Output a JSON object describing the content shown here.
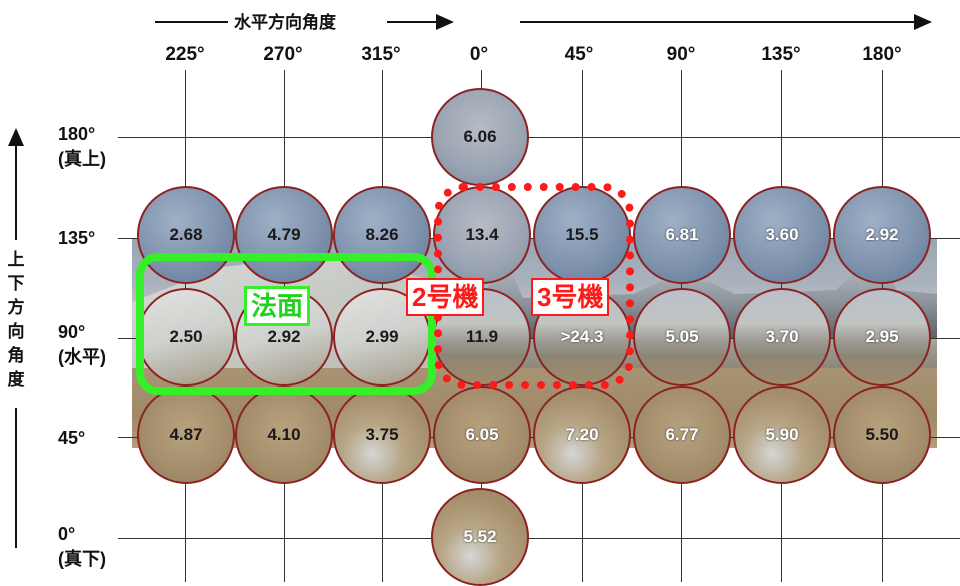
{
  "horizontal_axis": {
    "title": "水平方向角度",
    "columns": [
      "225°",
      "270°",
      "315°",
      "0°",
      "45°",
      "90°",
      "135°",
      "180°"
    ]
  },
  "vertical_axis": {
    "title": [
      "上",
      "下",
      "方",
      "向",
      "角",
      "度"
    ],
    "rows": [
      {
        "angle": "180°",
        "note": "(真上)"
      },
      {
        "angle": "135°",
        "note": ""
      },
      {
        "angle": "90°",
        "note": "(水平)"
      },
      {
        "angle": "45°",
        "note": ""
      },
      {
        "angle": "0°",
        "note": "(真下)"
      }
    ]
  },
  "measurements": {
    "top": "6.06",
    "row_135": [
      "2.68",
      "4.79",
      "8.26",
      "13.4",
      "15.5",
      "6.81",
      "3.60",
      "2.92"
    ],
    "row_90": [
      "2.50",
      "2.92",
      "2.99",
      "11.9",
      ">24.3",
      "5.05",
      "3.70",
      "2.95"
    ],
    "row_45": [
      "4.87",
      "4.10",
      "3.75",
      "6.05",
      "7.20",
      "6.77",
      "5.90",
      "5.50"
    ],
    "bottom": "5.52"
  },
  "annotations": {
    "slope_label": "法面",
    "unit2_label": "2号機",
    "unit3_label": "3号機"
  },
  "colors": {
    "lens_border": "#8b2323",
    "highlight_green": "#35ef29",
    "highlight_red": "#ff1a1a"
  }
}
